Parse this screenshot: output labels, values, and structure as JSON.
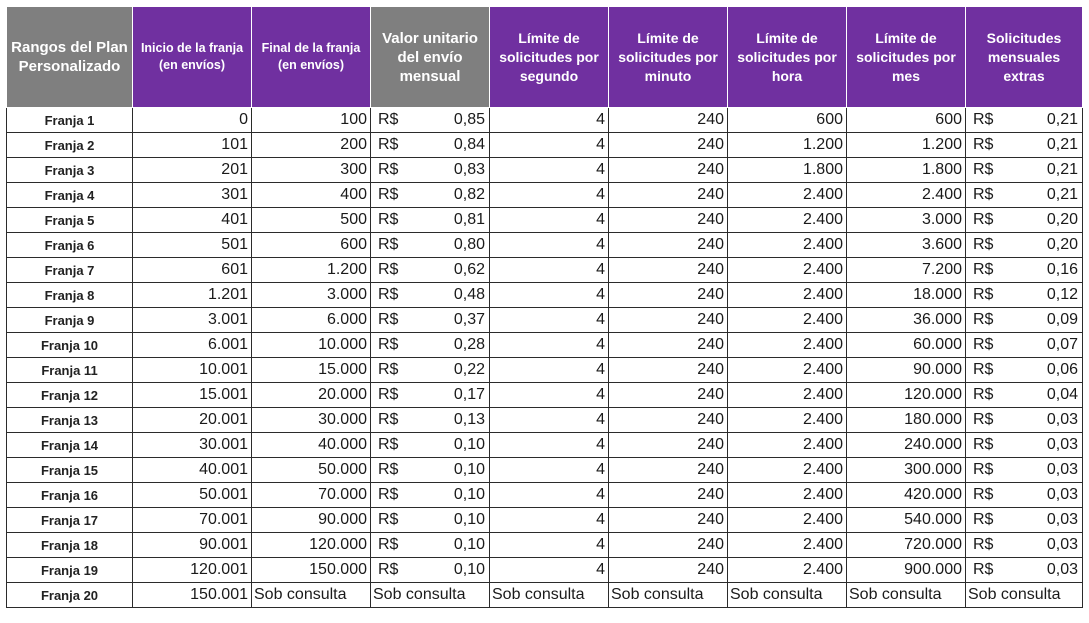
{
  "headers": [
    "Rangos del Plan Personalizado",
    "Inicio de la franja (en envíos)",
    "Final de la franja (en envíos)",
    "Valor unitario del envío mensual",
    "Límite de solicitudes por segundo",
    "Límite de solicitudes por minuto",
    "Límite de solicitudes por hora",
    "Límite de solicitudes por mes",
    "Solicitudes mensuales extras"
  ],
  "currency_symbol": "R$",
  "rows": [
    [
      "Franja 1",
      "0",
      "100",
      "0,85",
      "4",
      "240",
      "600",
      "600",
      "0,21"
    ],
    [
      "Franja 2",
      "101",
      "200",
      "0,84",
      "4",
      "240",
      "1.200",
      "1.200",
      "0,21"
    ],
    [
      "Franja 3",
      "201",
      "300",
      "0,83",
      "4",
      "240",
      "1.800",
      "1.800",
      "0,21"
    ],
    [
      "Franja 4",
      "301",
      "400",
      "0,82",
      "4",
      "240",
      "2.400",
      "2.400",
      "0,21"
    ],
    [
      "Franja 5",
      "401",
      "500",
      "0,81",
      "4",
      "240",
      "2.400",
      "3.000",
      "0,20"
    ],
    [
      "Franja 6",
      "501",
      "600",
      "0,80",
      "4",
      "240",
      "2.400",
      "3.600",
      "0,20"
    ],
    [
      "Franja 7",
      "601",
      "1.200",
      "0,62",
      "4",
      "240",
      "2.400",
      "7.200",
      "0,16"
    ],
    [
      "Franja 8",
      "1.201",
      "3.000",
      "0,48",
      "4",
      "240",
      "2.400",
      "18.000",
      "0,12"
    ],
    [
      "Franja 9",
      "3.001",
      "6.000",
      "0,37",
      "4",
      "240",
      "2.400",
      "36.000",
      "0,09"
    ],
    [
      "Franja 10",
      "6.001",
      "10.000",
      "0,28",
      "4",
      "240",
      "2.400",
      "60.000",
      "0,07"
    ],
    [
      "Franja 11",
      "10.001",
      "15.000",
      "0,22",
      "4",
      "240",
      "2.400",
      "90.000",
      "0,06"
    ],
    [
      "Franja 12",
      "15.001",
      "20.000",
      "0,17",
      "4",
      "240",
      "2.400",
      "120.000",
      "0,04"
    ],
    [
      "Franja 13",
      "20.001",
      "30.000",
      "0,13",
      "4",
      "240",
      "2.400",
      "180.000",
      "0,03"
    ],
    [
      "Franja 14",
      "30.001",
      "40.000",
      "0,10",
      "4",
      "240",
      "2.400",
      "240.000",
      "0,03"
    ],
    [
      "Franja 15",
      "40.001",
      "50.000",
      "0,10",
      "4",
      "240",
      "2.400",
      "300.000",
      "0,03"
    ],
    [
      "Franja 16",
      "50.001",
      "70.000",
      "0,10",
      "4",
      "240",
      "2.400",
      "420.000",
      "0,03"
    ],
    [
      "Franja 17",
      "70.001",
      "90.000",
      "0,10",
      "4",
      "240",
      "2.400",
      "540.000",
      "0,03"
    ],
    [
      "Franja 18",
      "90.001",
      "120.000",
      "0,10",
      "4",
      "240",
      "2.400",
      "720.000",
      "0,03"
    ],
    [
      "Franja 19",
      "120.001",
      "150.000",
      "0,10",
      "4",
      "240",
      "2.400",
      "900.000",
      "0,03"
    ],
    [
      "Franja 20",
      "150.001",
      "Sob consulta",
      "Sob consulta",
      "Sob consulta",
      "Sob consulta",
      "Sob consulta",
      "Sob consulta",
      "Sob consulta"
    ]
  ],
  "colors": {
    "header_gray": "#7f7f7f",
    "header_purple": "#7030a0",
    "header_text": "#ffffff",
    "border": "#2b2b2b"
  }
}
